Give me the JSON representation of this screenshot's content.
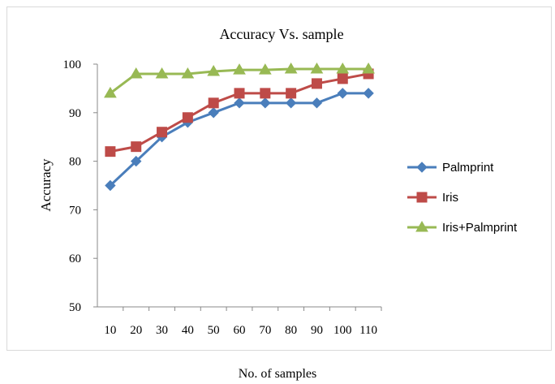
{
  "chart_data": {
    "type": "line",
    "title": "Accuracy Vs. sample",
    "xlabel": "No. of samples",
    "ylabel": "Accuracy",
    "categories": [
      "10",
      "20",
      "30",
      "40",
      "50",
      "60",
      "70",
      "80",
      "90",
      "100",
      "110"
    ],
    "y_ticks": [
      "50",
      "60",
      "70",
      "80",
      "90",
      "100"
    ],
    "ylim": [
      50,
      100
    ],
    "grid": false,
    "legend_position": "right",
    "series": [
      {
        "name": "Palmprint",
        "color": "#4a7ebb",
        "marker": "diamond",
        "values": [
          75,
          80,
          85,
          88,
          90,
          92,
          92,
          92,
          92,
          94,
          94
        ]
      },
      {
        "name": "Iris",
        "color": "#be4b48",
        "marker": "square",
        "values": [
          82,
          83,
          86,
          89,
          92,
          94,
          94,
          94,
          96,
          97,
          98
        ]
      },
      {
        "name": "Iris+Palmprint",
        "color": "#98b954",
        "marker": "triangle",
        "values": [
          94,
          98,
          98,
          98,
          98.5,
          98.8,
          98.8,
          99,
          99,
          99,
          99
        ]
      }
    ]
  }
}
